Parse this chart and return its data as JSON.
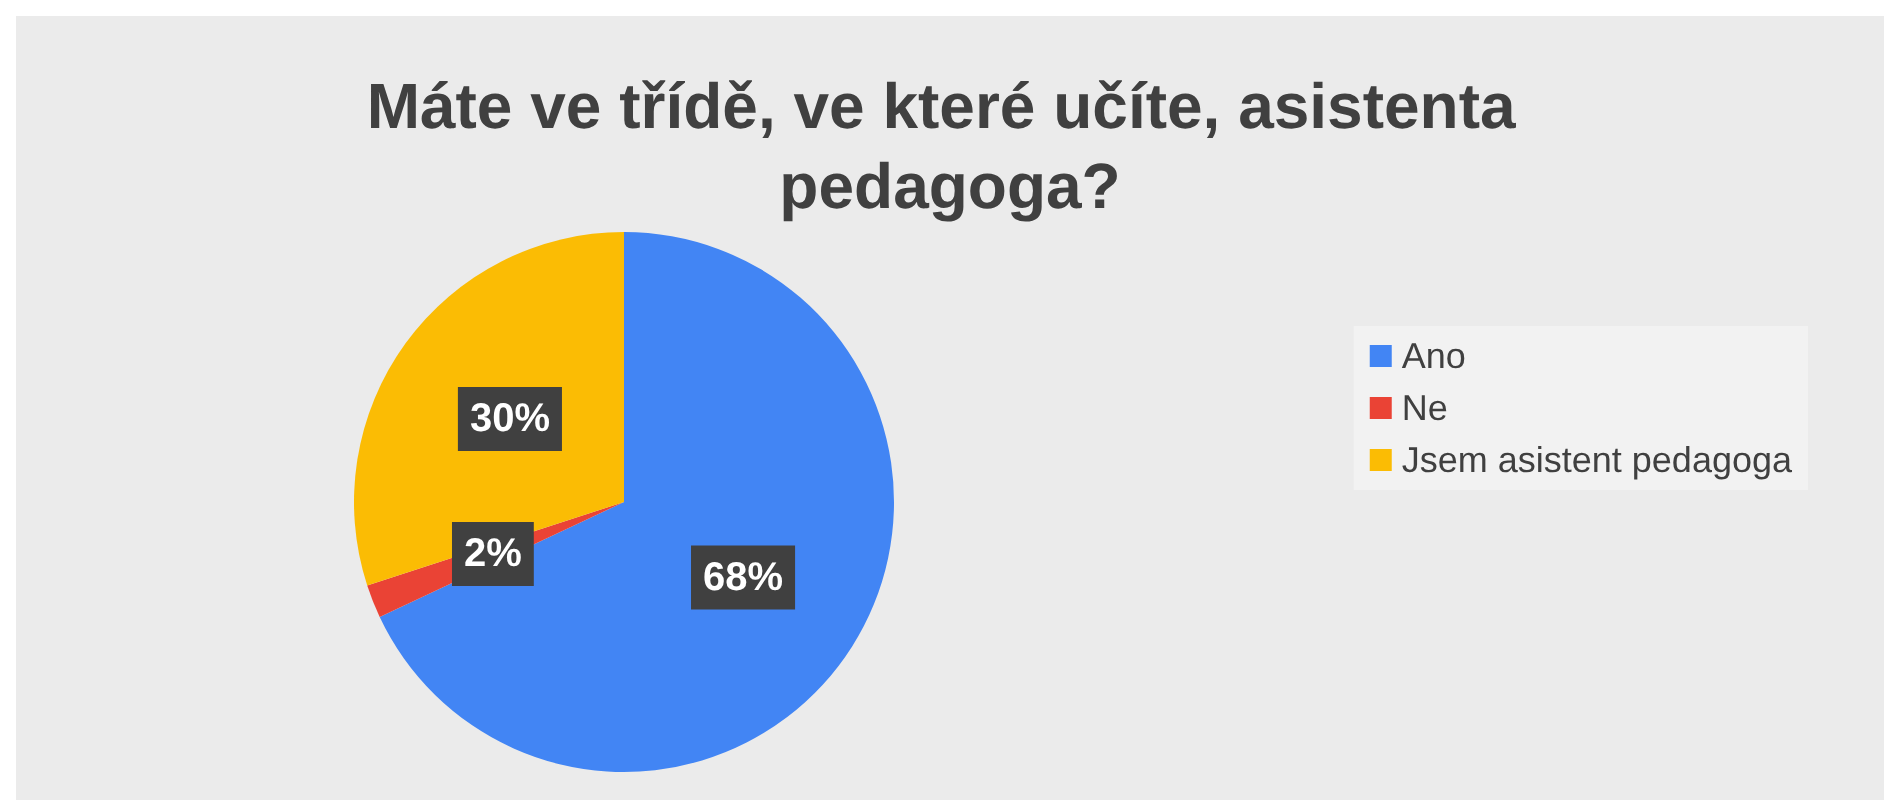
{
  "chart_data": {
    "type": "pie",
    "title": "Máte ve třídě, ve které učíte, asistenta pedagoga?",
    "categories": [
      "Ano",
      "Ne",
      "Jsem asistent pedagoga"
    ],
    "values": [
      68,
      2,
      30
    ],
    "colors": [
      "#4285f4",
      "#ea4335",
      "#fbbc04"
    ],
    "value_labels": [
      "68%",
      "2%",
      "30%"
    ],
    "legend": "right"
  }
}
